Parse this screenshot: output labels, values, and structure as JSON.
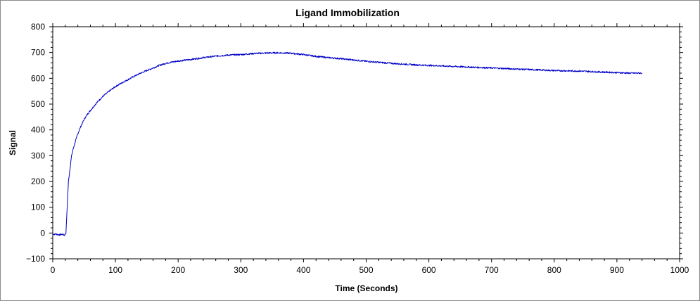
{
  "chart_data": {
    "type": "line",
    "title": "Ligand Immobilization",
    "xlabel": "Time (Seconds)",
    "ylabel": "Signal",
    "xlim": [
      0,
      1000
    ],
    "ylim": [
      -100,
      800
    ],
    "xticks": [
      0,
      100,
      200,
      300,
      400,
      500,
      600,
      700,
      800,
      900,
      1000
    ],
    "yticks": [
      -100,
      0,
      100,
      200,
      300,
      400,
      500,
      600,
      700,
      800
    ],
    "grid": false,
    "legend": "none",
    "series": [
      {
        "color": "#0000c8",
        "x": [
          0,
          5,
          10,
          15,
          19,
          21,
          23,
          25,
          28,
          30,
          33,
          36,
          40,
          45,
          50,
          55,
          60,
          70,
          80,
          90,
          100,
          110,
          120,
          130,
          140,
          150,
          160,
          170,
          180,
          190,
          200,
          220,
          240,
          260,
          280,
          300,
          320,
          340,
          360,
          380,
          400,
          420,
          440,
          460,
          480,
          500,
          520,
          540,
          560,
          580,
          600,
          620,
          640,
          660,
          680,
          700,
          720,
          740,
          760,
          780,
          800,
          820,
          840,
          860,
          880,
          900,
          920,
          940
        ],
        "y": [
          -5,
          -4,
          -7,
          -5,
          -8,
          0,
          100,
          200,
          260,
          300,
          330,
          355,
          385,
          415,
          440,
          460,
          475,
          505,
          530,
          550,
          568,
          582,
          595,
          608,
          620,
          630,
          640,
          650,
          658,
          663,
          667,
          673,
          680,
          686,
          690,
          692,
          696,
          698,
          699,
          697,
          692,
          685,
          680,
          676,
          671,
          666,
          662,
          658,
          655,
          652,
          650,
          648,
          646,
          644,
          642,
          640,
          638,
          636,
          634,
          632,
          630,
          629,
          628,
          626,
          624,
          622,
          620,
          620
        ]
      }
    ]
  }
}
